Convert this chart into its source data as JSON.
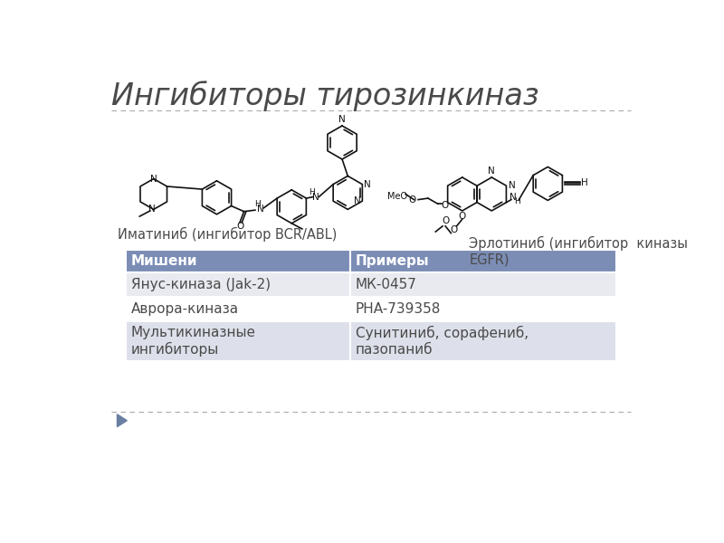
{
  "title": "Ингибиторы тирозинкиназ",
  "title_color": "#4a4a4a",
  "title_fontsize": 24,
  "background_color": "#ffffff",
  "separator_color": "#aaaaaa",
  "arrow_color": "#6b7fa3",
  "imatinib_label": "Иматиниб (ингибитор BCR/ABL)",
  "erlotinib_label": "Эрлотиниб (ингибитор  киназы\nEGFR)",
  "table_header_bg": "#7b8db5",
  "table_header_color": "#ffffff",
  "table_row1_bg": "#e8eaf0",
  "table_row2_bg": "#ffffff",
  "table_row3_bg": "#dde0ea",
  "table_headers": [
    "Мишени",
    "Примеры"
  ],
  "table_rows": [
    [
      "Янус-киназа (Jak-2)",
      "МК-0457"
    ],
    [
      "Аврора-киназа",
      "PHA-739358"
    ],
    [
      "Мультикиназные\nингибиторы",
      "Сунитиниб, сорафениб,\nпазопаниб"
    ]
  ],
  "label_fontsize": 10.5,
  "table_fontsize": 11
}
